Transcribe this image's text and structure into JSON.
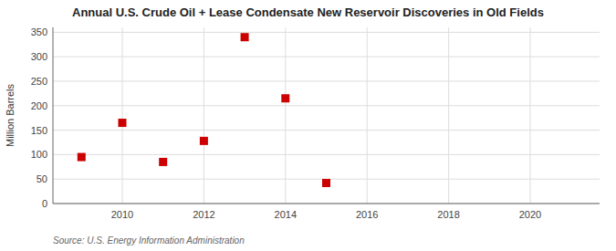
{
  "chart_data": {
    "type": "scatter",
    "title": "Annual U.S. Crude Oil + Lease Condensate New Reservoir Discoveries in Old Fields",
    "ylabel": "Million Barrels",
    "source": "Source: U.S. Energy Information Administration",
    "x": [
      2009,
      2010,
      2011,
      2012,
      2013,
      2014,
      2015
    ],
    "values": [
      95,
      165,
      85,
      128,
      340,
      215,
      42
    ],
    "color": "#cc0000",
    "marker": "square",
    "xlim": [
      2008.3,
      2021.7
    ],
    "ylim": [
      0,
      360
    ],
    "xticks": [
      2010,
      2012,
      2014,
      2016,
      2018,
      2020
    ],
    "yticks": [
      0,
      50,
      100,
      150,
      200,
      250,
      300,
      350
    ],
    "grid": true
  }
}
